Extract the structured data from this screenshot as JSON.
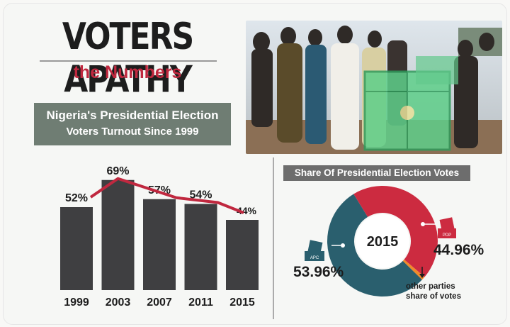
{
  "header": {
    "title": "VOTERS APATHY",
    "subtitle": "the Numbers",
    "banner_line1": "Nigeria's Presidential Election",
    "banner_line2": "Voters Turnout Since 1999"
  },
  "colors": {
    "title": "#1d1d1d",
    "subtitle": "#c0283f",
    "banner": "#6f7d73",
    "bar": "#3f3f41",
    "line": "#c0283f",
    "apc": "#2a5f6e",
    "pdp": "#cc2b40",
    "others": "#f08a2a"
  },
  "chart_data": [
    {
      "type": "bar",
      "title": "Nigeria's Presidential Election Voters Turnout Since 1999",
      "categories": [
        "1999",
        "2003",
        "2007",
        "2011",
        "2015"
      ],
      "values": [
        52,
        69,
        57,
        54,
        44
      ],
      "labels": [
        "52%",
        "69%",
        "57%",
        "54%",
        "44%"
      ],
      "overlay_line": true
    },
    {
      "type": "pie",
      "title": "Share Of Presidential Election Votes",
      "center_label": "2015",
      "slices": [
        {
          "name": "APC",
          "value": 53.96,
          "label": "53.96%",
          "color": "#2a5f6e"
        },
        {
          "name": "PDP",
          "value": 44.96,
          "label": "44.96%",
          "color": "#cc2b40"
        },
        {
          "name": "other parties share of votes",
          "value": 1.08,
          "label": "",
          "color": "#f08a2a"
        }
      ],
      "others_caption_line1": "other parties",
      "others_caption_line2": "share of votes",
      "apc_icon_text": "APC",
      "pdp_icon_text": "PDP"
    }
  ]
}
